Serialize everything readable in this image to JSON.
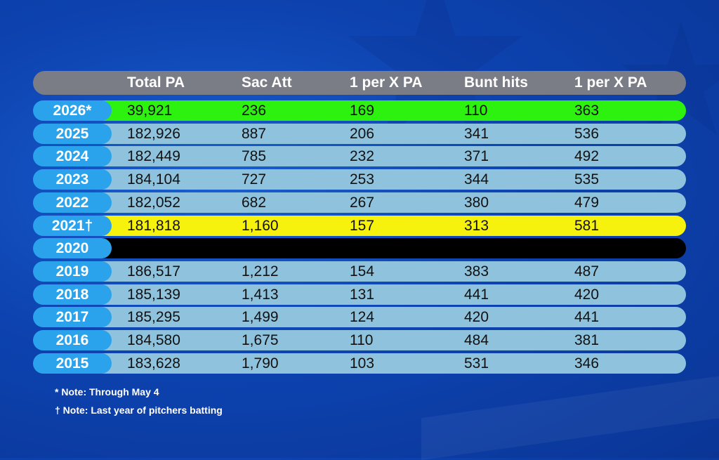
{
  "chart_data": {
    "type": "table",
    "columns": [
      "",
      "Total PA",
      "Sac Att",
      "1 per X PA",
      "Bunt hits",
      "1 per X PA"
    ],
    "rows": [
      {
        "year": "2026*",
        "highlight": "#2df20f",
        "values": [
          "39,921",
          "236",
          "169",
          "110",
          "363"
        ]
      },
      {
        "year": "2025",
        "highlight": "",
        "values": [
          "182,926",
          "887",
          "206",
          "341",
          "536"
        ]
      },
      {
        "year": "2024",
        "highlight": "",
        "values": [
          "182,449",
          "785",
          "232",
          "371",
          "492"
        ]
      },
      {
        "year": "2023",
        "highlight": "",
        "values": [
          "184,104",
          "727",
          "253",
          "344",
          "535"
        ]
      },
      {
        "year": "2022",
        "highlight": "",
        "values": [
          "182,052",
          "682",
          "267",
          "380",
          "479"
        ]
      },
      {
        "year": "2021†",
        "highlight": "#f7f20d",
        "values": [
          "181,818",
          "1,160",
          "157",
          "313",
          "581"
        ]
      },
      {
        "year": "2020",
        "highlight": "#000000",
        "values": [
          "",
          "",
          "",
          "",
          ""
        ]
      },
      {
        "year": "2019",
        "highlight": "",
        "values": [
          "186,517",
          "1,212",
          "154",
          "383",
          "487"
        ]
      },
      {
        "year": "2018",
        "highlight": "",
        "values": [
          "185,139",
          "1,413",
          "131",
          "441",
          "420"
        ]
      },
      {
        "year": "2017",
        "highlight": "",
        "values": [
          "185,295",
          "1,499",
          "124",
          "420",
          "441"
        ]
      },
      {
        "year": "2016",
        "highlight": "",
        "values": [
          "184,580",
          "1,675",
          "110",
          "484",
          "381"
        ]
      },
      {
        "year": "2015",
        "highlight": "",
        "values": [
          "183,628",
          "1,790",
          "103",
          "531",
          "346"
        ]
      }
    ],
    "notes": [
      "* Note: Through May 4",
      "† Note: Last year of pitchers batting"
    ]
  },
  "colors": {
    "header": "#7b7d86",
    "row": "#8fc2dc",
    "year_pill": "#2aa3ec",
    "background": "#0d43b0"
  }
}
